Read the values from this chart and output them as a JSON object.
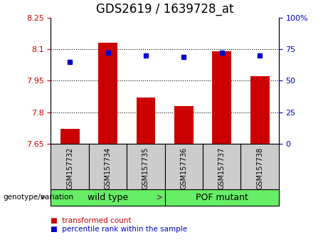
{
  "title": "GDS2619 / 1639728_at",
  "samples": [
    "GSM157732",
    "GSM157734",
    "GSM157735",
    "GSM157736",
    "GSM157737",
    "GSM157738"
  ],
  "transformed_counts": [
    7.72,
    8.13,
    7.87,
    7.83,
    8.09,
    7.97
  ],
  "percentile_ranks": [
    65,
    72,
    70,
    69,
    72,
    70
  ],
  "bar_bottom": 7.65,
  "ylim_left": [
    7.65,
    8.25
  ],
  "ylim_right": [
    0,
    100
  ],
  "yticks_left": [
    7.65,
    7.8,
    7.95,
    8.1,
    8.25
  ],
  "ytick_labels_left": [
    "7.65",
    "7.8",
    "7.95",
    "8.1",
    "8.25"
  ],
  "yticks_right": [
    0,
    25,
    50,
    75,
    100
  ],
  "ytick_labels_right": [
    "0",
    "25",
    "50",
    "75",
    "100%"
  ],
  "bar_color": "#cc0000",
  "marker_color": "#0000cc",
  "groups": [
    {
      "label": "wild type",
      "indices": [
        0,
        1,
        2
      ],
      "color": "#66ee66"
    },
    {
      "label": "POF mutant",
      "indices": [
        3,
        4,
        5
      ],
      "color": "#66ee66"
    }
  ],
  "legend_items": [
    {
      "label": "transformed count",
      "color": "#cc0000"
    },
    {
      "label": "percentile rank within the sample",
      "color": "#0000cc"
    }
  ],
  "title_fontsize": 12,
  "tick_fontsize": 8,
  "label_fontsize": 8.5
}
